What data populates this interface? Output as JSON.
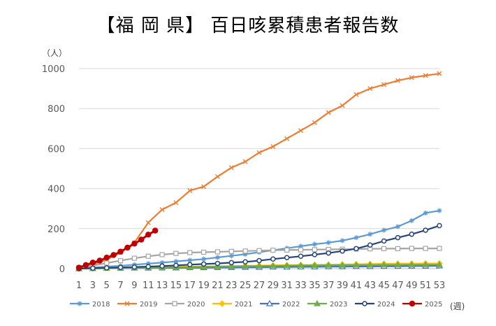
{
  "chart_data": {
    "type": "line",
    "title": "【福 岡 県】 百日咳累積患者報告数",
    "y_unit": "（人）",
    "x_unit": "(週)",
    "ylim": [
      0,
      1000
    ],
    "xlim": [
      1,
      53
    ],
    "y_ticks": [
      0,
      200,
      400,
      600,
      800,
      1000
    ],
    "x_ticks": [
      1,
      3,
      5,
      7,
      9,
      11,
      13,
      15,
      17,
      19,
      21,
      23,
      25,
      27,
      29,
      31,
      33,
      35,
      37,
      39,
      41,
      43,
      45,
      47,
      49,
      51,
      53
    ],
    "grid": "horizontal",
    "legend_position": "bottom",
    "series": [
      {
        "name": "2018",
        "color": "#5B9BD5",
        "marker": "asterisk",
        "points": [
          [
            1,
            2
          ],
          [
            3,
            6
          ],
          [
            5,
            10
          ],
          [
            7,
            14
          ],
          [
            9,
            20
          ],
          [
            11,
            25
          ],
          [
            13,
            30
          ],
          [
            15,
            36
          ],
          [
            17,
            42
          ],
          [
            19,
            48
          ],
          [
            21,
            56
          ],
          [
            23,
            64
          ],
          [
            25,
            72
          ],
          [
            27,
            82
          ],
          [
            29,
            92
          ],
          [
            31,
            102
          ],
          [
            33,
            112
          ],
          [
            35,
            122
          ],
          [
            37,
            130
          ],
          [
            39,
            140
          ],
          [
            41,
            155
          ],
          [
            43,
            172
          ],
          [
            45,
            192
          ],
          [
            47,
            210
          ],
          [
            49,
            240
          ],
          [
            51,
            278
          ],
          [
            53,
            290
          ]
        ]
      },
      {
        "name": "2019",
        "color": "#ED7D31",
        "marker": "x",
        "points": [
          [
            1,
            0
          ],
          [
            3,
            20
          ],
          [
            5,
            45
          ],
          [
            7,
            80
          ],
          [
            9,
            130
          ],
          [
            11,
            230
          ],
          [
            13,
            295
          ],
          [
            15,
            330
          ],
          [
            17,
            390
          ],
          [
            19,
            410
          ],
          [
            21,
            460
          ],
          [
            23,
            505
          ],
          [
            25,
            535
          ],
          [
            27,
            580
          ],
          [
            29,
            610
          ],
          [
            31,
            650
          ],
          [
            33,
            690
          ],
          [
            35,
            730
          ],
          [
            37,
            780
          ],
          [
            39,
            815
          ],
          [
            41,
            870
          ],
          [
            43,
            900
          ],
          [
            45,
            920
          ],
          [
            47,
            940
          ],
          [
            49,
            955
          ],
          [
            51,
            965
          ],
          [
            53,
            975
          ]
        ]
      },
      {
        "name": "2020",
        "color": "#A5A5A5",
        "marker": "square",
        "points": [
          [
            1,
            5
          ],
          [
            3,
            15
          ],
          [
            5,
            28
          ],
          [
            7,
            40
          ],
          [
            9,
            52
          ],
          [
            11,
            62
          ],
          [
            13,
            70
          ],
          [
            15,
            76
          ],
          [
            17,
            80
          ],
          [
            19,
            82
          ],
          [
            21,
            84
          ],
          [
            23,
            86
          ],
          [
            25,
            88
          ],
          [
            27,
            90
          ],
          [
            29,
            92
          ],
          [
            31,
            93
          ],
          [
            33,
            94
          ],
          [
            35,
            95
          ],
          [
            37,
            96
          ],
          [
            39,
            97
          ],
          [
            41,
            98
          ],
          [
            43,
            99
          ],
          [
            45,
            100
          ],
          [
            47,
            100
          ],
          [
            49,
            101
          ],
          [
            51,
            101
          ],
          [
            53,
            101
          ]
        ]
      },
      {
        "name": "2021",
        "color": "#FFC000",
        "marker": "diamond",
        "points": [
          [
            1,
            0
          ],
          [
            3,
            2
          ],
          [
            5,
            4
          ],
          [
            7,
            5
          ],
          [
            9,
            6
          ],
          [
            11,
            7
          ],
          [
            13,
            8
          ],
          [
            15,
            9
          ],
          [
            17,
            10
          ],
          [
            19,
            11
          ],
          [
            21,
            12
          ],
          [
            23,
            13
          ],
          [
            25,
            14
          ],
          [
            27,
            15
          ],
          [
            29,
            16
          ],
          [
            31,
            17
          ],
          [
            33,
            18
          ],
          [
            35,
            19
          ],
          [
            37,
            20
          ],
          [
            39,
            21
          ],
          [
            41,
            22
          ],
          [
            43,
            23
          ],
          [
            45,
            24
          ],
          [
            47,
            25
          ],
          [
            49,
            25
          ],
          [
            51,
            26
          ],
          [
            53,
            26
          ]
        ]
      },
      {
        "name": "2022",
        "color": "#4472C4",
        "marker": "triangle",
        "points": [
          [
            1,
            0
          ],
          [
            3,
            1
          ],
          [
            5,
            2
          ],
          [
            7,
            2
          ],
          [
            9,
            3
          ],
          [
            11,
            3
          ],
          [
            13,
            4
          ],
          [
            15,
            4
          ],
          [
            17,
            5
          ],
          [
            19,
            5
          ],
          [
            21,
            6
          ],
          [
            23,
            6
          ],
          [
            25,
            7
          ],
          [
            27,
            7
          ],
          [
            29,
            8
          ],
          [
            31,
            8
          ],
          [
            33,
            9
          ],
          [
            35,
            9
          ],
          [
            37,
            10
          ],
          [
            39,
            10
          ],
          [
            41,
            11
          ],
          [
            43,
            11
          ],
          [
            45,
            12
          ],
          [
            47,
            12
          ],
          [
            49,
            13
          ],
          [
            51,
            13
          ],
          [
            53,
            14
          ]
        ]
      },
      {
        "name": "2023",
        "color": "#70AD47",
        "marker": "triangle",
        "points": [
          [
            1,
            0
          ],
          [
            3,
            1
          ],
          [
            5,
            2
          ],
          [
            7,
            3
          ],
          [
            9,
            4
          ],
          [
            11,
            5
          ],
          [
            13,
            6
          ],
          [
            15,
            7
          ],
          [
            17,
            8
          ],
          [
            19,
            9
          ],
          [
            21,
            10
          ],
          [
            23,
            11
          ],
          [
            25,
            12
          ],
          [
            27,
            13
          ],
          [
            29,
            14
          ],
          [
            31,
            15
          ],
          [
            33,
            16
          ],
          [
            35,
            16
          ],
          [
            37,
            17
          ],
          [
            39,
            17
          ],
          [
            41,
            18
          ],
          [
            43,
            18
          ],
          [
            45,
            19
          ],
          [
            47,
            19
          ],
          [
            49,
            20
          ],
          [
            51,
            20
          ],
          [
            53,
            20
          ]
        ]
      },
      {
        "name": "2024",
        "color": "#264478",
        "marker": "circle",
        "points": [
          [
            1,
            0
          ],
          [
            3,
            2
          ],
          [
            5,
            4
          ],
          [
            7,
            6
          ],
          [
            9,
            8
          ],
          [
            11,
            10
          ],
          [
            13,
            13
          ],
          [
            15,
            16
          ],
          [
            17,
            20
          ],
          [
            19,
            23
          ],
          [
            21,
            26
          ],
          [
            23,
            30
          ],
          [
            25,
            34
          ],
          [
            27,
            40
          ],
          [
            29,
            48
          ],
          [
            31,
            55
          ],
          [
            33,
            62
          ],
          [
            35,
            70
          ],
          [
            37,
            78
          ],
          [
            39,
            88
          ],
          [
            41,
            100
          ],
          [
            43,
            118
          ],
          [
            45,
            138
          ],
          [
            47,
            155
          ],
          [
            49,
            172
          ],
          [
            51,
            192
          ],
          [
            53,
            215
          ]
        ]
      },
      {
        "name": "2025",
        "color": "#C00000",
        "marker": "circle",
        "points": [
          [
            1,
            5
          ],
          [
            2,
            18
          ],
          [
            3,
            30
          ],
          [
            4,
            40
          ],
          [
            5,
            55
          ],
          [
            6,
            68
          ],
          [
            7,
            85
          ],
          [
            8,
            105
          ],
          [
            9,
            125
          ],
          [
            10,
            145
          ],
          [
            11,
            170
          ],
          [
            12,
            190
          ]
        ]
      }
    ]
  }
}
